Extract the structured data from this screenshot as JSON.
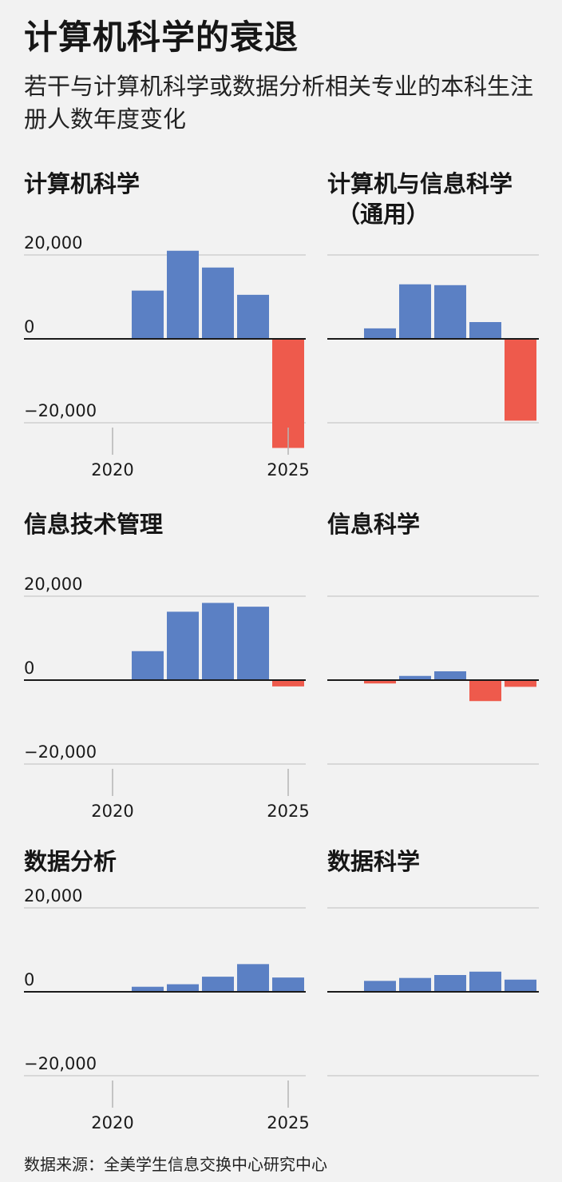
{
  "title": "计算机科学的衰退",
  "subtitle": "若干与计算机科学或数据分析相关专业的本科生注册人数年度变化",
  "source": "数据来源：全美学生信息交换中心研究中心",
  "colors": {
    "increase": "#5b80c4",
    "decrease": "#ee5a4c",
    "grid": "#cfcfcf",
    "axis": "#1a1a1a",
    "tick": "#999999"
  },
  "chart_data": [
    {
      "type": "bar",
      "title": "计算机科学",
      "x": [
        2021,
        2022,
        2023,
        2024,
        2025
      ],
      "values": [
        11500,
        21000,
        17000,
        10500,
        -26000
      ],
      "ylim": [
        -20000,
        20000
      ],
      "yticks": [
        "20,000",
        "0",
        "−20,000"
      ],
      "xticks": [
        "2020",
        "2025"
      ]
    },
    {
      "type": "bar",
      "title": "计算机与信息科学（通用）",
      "x": [
        2021,
        2022,
        2023,
        2024,
        2025
      ],
      "values": [
        2500,
        13000,
        12800,
        4000,
        -19500
      ],
      "ylim": [
        -20000,
        20000
      ]
    },
    {
      "type": "bar",
      "title": "信息技术管理",
      "x": [
        2021,
        2022,
        2023,
        2024,
        2025
      ],
      "values": [
        6900,
        16300,
        18400,
        17500,
        -1500
      ],
      "ylim": [
        -20000,
        20000
      ],
      "yticks": [
        "20,000",
        "0",
        "−20,000"
      ],
      "xticks": [
        "2020",
        "2025"
      ]
    },
    {
      "type": "bar",
      "title": "信息科学",
      "x": [
        2021,
        2022,
        2023,
        2024,
        2025
      ],
      "values": [
        -800,
        1000,
        2100,
        -5000,
        -1600
      ],
      "ylim": [
        -20000,
        20000
      ]
    },
    {
      "type": "bar",
      "title": "数据分析",
      "x": [
        2021,
        2022,
        2023,
        2024,
        2025
      ],
      "values": [
        1200,
        1800,
        3600,
        6600,
        3400
      ],
      "ylim": [
        -20000,
        20000
      ],
      "yticks": [
        "20,000",
        "0",
        "−20,000"
      ],
      "xticks": [
        "2020",
        "2025"
      ]
    },
    {
      "type": "bar",
      "title": "数据科学",
      "x": [
        2021,
        2022,
        2023,
        2024,
        2025
      ],
      "values": [
        2600,
        3300,
        4000,
        4800,
        2900
      ],
      "ylim": [
        -20000,
        20000
      ]
    }
  ]
}
